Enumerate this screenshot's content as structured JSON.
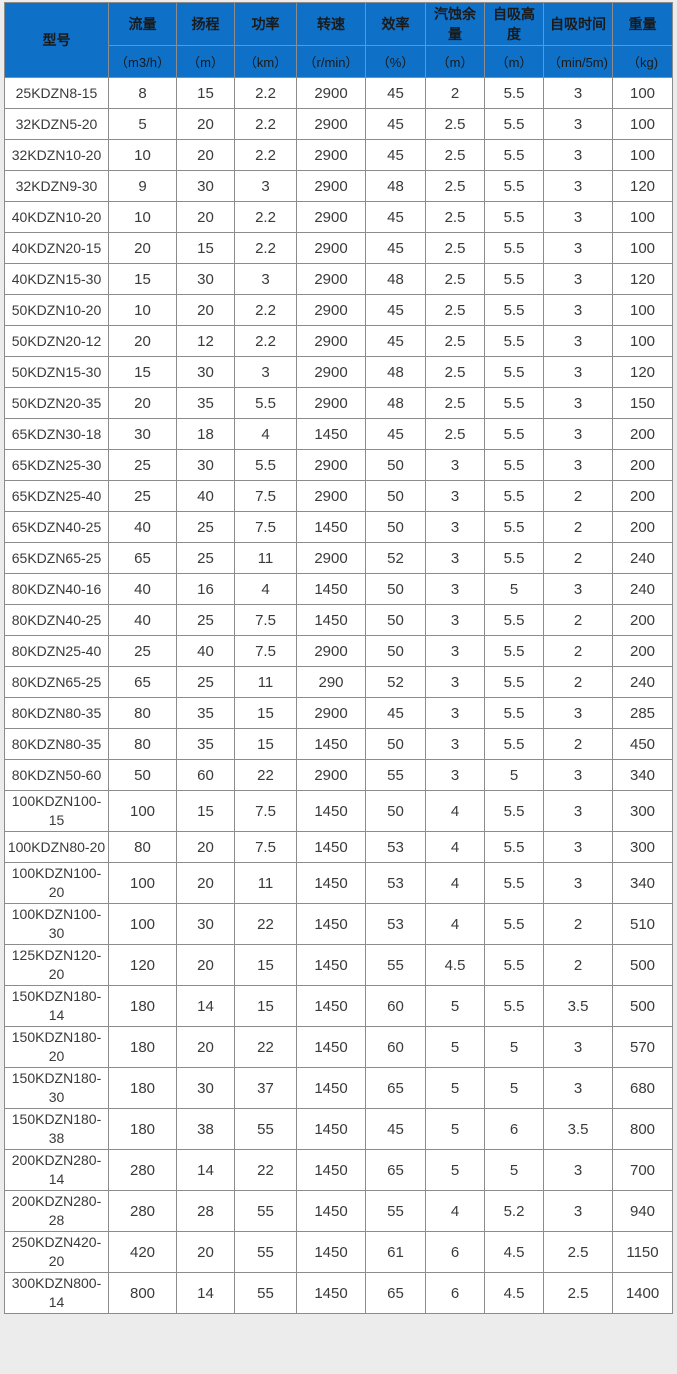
{
  "page": {
    "background_color": "#ececec",
    "header_color": "#0e70c6",
    "grid_color": "#8c8c8c"
  },
  "table": {
    "model_header": "型号",
    "columns": [
      {
        "label": "流量",
        "unit": "（m3/h）"
      },
      {
        "label": "扬程",
        "unit": "（m）"
      },
      {
        "label": "功率",
        "unit": "（km）"
      },
      {
        "label": "转速",
        "unit": "（r/min）"
      },
      {
        "label": "效率",
        "unit": "（%）"
      },
      {
        "label": "汽蚀余量",
        "unit": "（m）"
      },
      {
        "label": "自吸高度",
        "unit": "（m）"
      },
      {
        "label": "自吸时间",
        "unit": "（min/5m)"
      },
      {
        "label": "重量",
        "unit": "（kg)"
      }
    ],
    "rows": [
      {
        "model": "25KDZN8-15",
        "values": [
          "8",
          "15",
          "2.2",
          "2900",
          "45",
          "2",
          "5.5",
          "3",
          "100"
        ]
      },
      {
        "model": "32KDZN5-20",
        "values": [
          "5",
          "20",
          "2.2",
          "2900",
          "45",
          "2.5",
          "5.5",
          "3",
          "100"
        ]
      },
      {
        "model": "32KDZN10-20",
        "values": [
          "10",
          "20",
          "2.2",
          "2900",
          "45",
          "2.5",
          "5.5",
          "3",
          "100"
        ]
      },
      {
        "model": "32KDZN9-30",
        "values": [
          "9",
          "30",
          "3",
          "2900",
          "48",
          "2.5",
          "5.5",
          "3",
          "120"
        ]
      },
      {
        "model": "40KDZN10-20",
        "values": [
          "10",
          "20",
          "2.2",
          "2900",
          "45",
          "2.5",
          "5.5",
          "3",
          "100"
        ]
      },
      {
        "model": "40KDZN20-15",
        "values": [
          "20",
          "15",
          "2.2",
          "2900",
          "45",
          "2.5",
          "5.5",
          "3",
          "100"
        ]
      },
      {
        "model": "40KDZN15-30",
        "values": [
          "15",
          "30",
          "3",
          "2900",
          "48",
          "2.5",
          "5.5",
          "3",
          "120"
        ]
      },
      {
        "model": "50KDZN10-20",
        "values": [
          "10",
          "20",
          "2.2",
          "2900",
          "45",
          "2.5",
          "5.5",
          "3",
          "100"
        ]
      },
      {
        "model": "50KDZN20-12",
        "values": [
          "20",
          "12",
          "2.2",
          "2900",
          "45",
          "2.5",
          "5.5",
          "3",
          "100"
        ]
      },
      {
        "model": "50KDZN15-30",
        "values": [
          "15",
          "30",
          "3",
          "2900",
          "48",
          "2.5",
          "5.5",
          "3",
          "120"
        ]
      },
      {
        "model": "50KDZN20-35",
        "values": [
          "20",
          "35",
          "5.5",
          "2900",
          "48",
          "2.5",
          "5.5",
          "3",
          "150"
        ]
      },
      {
        "model": "65KDZN30-18",
        "values": [
          "30",
          "18",
          "4",
          "1450",
          "45",
          "2.5",
          "5.5",
          "3",
          "200"
        ]
      },
      {
        "model": "65KDZN25-30",
        "values": [
          "25",
          "30",
          "5.5",
          "2900",
          "50",
          "3",
          "5.5",
          "3",
          "200"
        ]
      },
      {
        "model": "65KDZN25-40",
        "values": [
          "25",
          "40",
          "7.5",
          "2900",
          "50",
          "3",
          "5.5",
          "2",
          "200"
        ]
      },
      {
        "model": "65KDZN40-25",
        "values": [
          "40",
          "25",
          "7.5",
          "1450",
          "50",
          "3",
          "5.5",
          "2",
          "200"
        ]
      },
      {
        "model": "65KDZN65-25",
        "values": [
          "65",
          "25",
          "11",
          "2900",
          "52",
          "3",
          "5.5",
          "2",
          "240"
        ]
      },
      {
        "model": "80KDZN40-16",
        "values": [
          "40",
          "16",
          "4",
          "1450",
          "50",
          "3",
          "5",
          "3",
          "240"
        ]
      },
      {
        "model": "80KDZN40-25",
        "values": [
          "40",
          "25",
          "7.5",
          "1450",
          "50",
          "3",
          "5.5",
          "2",
          "200"
        ]
      },
      {
        "model": "80KDZN25-40",
        "values": [
          "25",
          "40",
          "7.5",
          "2900",
          "50",
          "3",
          "5.5",
          "2",
          "200"
        ]
      },
      {
        "model": "80KDZN65-25",
        "values": [
          "65",
          "25",
          "11",
          "290",
          "52",
          "3",
          "5.5",
          "2",
          "240"
        ]
      },
      {
        "model": "80KDZN80-35",
        "values": [
          "80",
          "35",
          "15",
          "2900",
          "45",
          "3",
          "5.5",
          "3",
          "285"
        ]
      },
      {
        "model": "80KDZN80-35",
        "values": [
          "80",
          "35",
          "15",
          "1450",
          "50",
          "3",
          "5.5",
          "2",
          "450"
        ]
      },
      {
        "model": "80KDZN50-60",
        "values": [
          "50",
          "60",
          "22",
          "2900",
          "55",
          "3",
          "5",
          "3",
          "340"
        ]
      },
      {
        "model": "100KDZN100-15",
        "values": [
          "100",
          "15",
          "7.5",
          "1450",
          "50",
          "4",
          "5.5",
          "3",
          "300"
        ]
      },
      {
        "model": "100KDZN80-20",
        "values": [
          "80",
          "20",
          "7.5",
          "1450",
          "53",
          "4",
          "5.5",
          "3",
          "300"
        ]
      },
      {
        "model": "100KDZN100-20",
        "values": [
          "100",
          "20",
          "11",
          "1450",
          "53",
          "4",
          "5.5",
          "3",
          "340"
        ]
      },
      {
        "model": "100KDZN100-30",
        "values": [
          "100",
          "30",
          "22",
          "1450",
          "53",
          "4",
          "5.5",
          "2",
          "510"
        ]
      },
      {
        "model": "125KDZN120-20",
        "values": [
          "120",
          "20",
          "15",
          "1450",
          "55",
          "4.5",
          "5.5",
          "2",
          "500"
        ]
      },
      {
        "model": "150KDZN180-14",
        "values": [
          "180",
          "14",
          "15",
          "1450",
          "60",
          "5",
          "5.5",
          "3.5",
          "500"
        ]
      },
      {
        "model": "150KDZN180-20",
        "values": [
          "180",
          "20",
          "22",
          "1450",
          "60",
          "5",
          "5",
          "3",
          "570"
        ]
      },
      {
        "model": "150KDZN180-30",
        "values": [
          "180",
          "30",
          "37",
          "1450",
          "65",
          "5",
          "5",
          "3",
          "680"
        ]
      },
      {
        "model": "150KDZN180-38",
        "values": [
          "180",
          "38",
          "55",
          "1450",
          "45",
          "5",
          "6",
          "3.5",
          "800"
        ]
      },
      {
        "model": "200KDZN280-14",
        "values": [
          "280",
          "14",
          "22",
          "1450",
          "65",
          "5",
          "5",
          "3",
          "700"
        ]
      },
      {
        "model": "200KDZN280-28",
        "values": [
          "280",
          "28",
          "55",
          "1450",
          "55",
          "4",
          "5.2",
          "3",
          "940"
        ]
      },
      {
        "model": "250KDZN420-20",
        "values": [
          "420",
          "20",
          "55",
          "1450",
          "61",
          "6",
          "4.5",
          "2.5",
          "1150"
        ]
      },
      {
        "model": "300KDZN800-14",
        "values": [
          "800",
          "14",
          "55",
          "1450",
          "65",
          "6",
          "4.5",
          "2.5",
          "1400"
        ]
      }
    ]
  }
}
